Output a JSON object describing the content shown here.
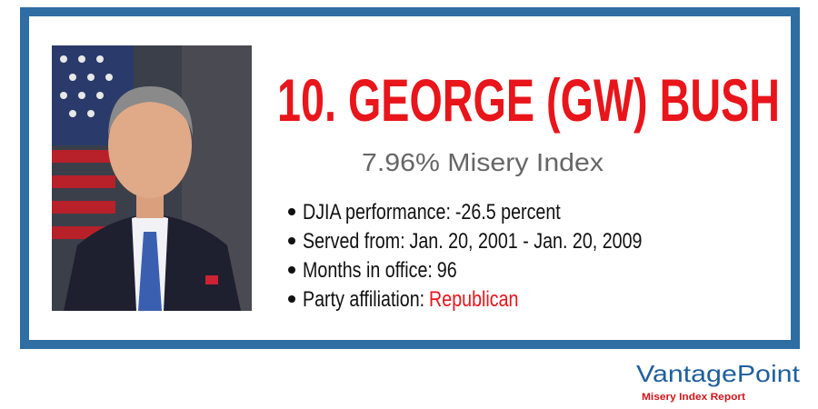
{
  "header": {
    "title": "10. GEORGE (GW) BUSH",
    "subtitle": "7.96% Misery Index"
  },
  "bullets": [
    {
      "label": "DJIA performance:",
      "value": "-26.5 percent"
    },
    {
      "label": "Served from:",
      "value": "Jan. 20, 2001 - Jan. 20, 2009"
    },
    {
      "label": "Months in office:",
      "value": "96"
    },
    {
      "label": "Party affiliation:",
      "value": "Republican"
    }
  ],
  "logo": {
    "name": "VantagePoint",
    "tagline": "Misery Index Report"
  }
}
